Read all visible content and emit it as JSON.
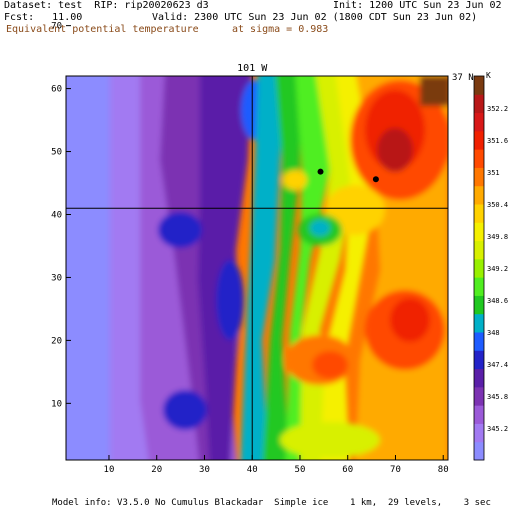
{
  "header": {
    "dataset_line": "Dataset: test  RIP: rip20020623 d3",
    "init_line": "Init: 1200 UTC Sun 23 Jun 02",
    "fcst_line": "Fcst:   11.00",
    "valid_line": "Valid: 2300 UTC Sun 23 Jun 02 (1800 CDT Sun 23 Jun 02)",
    "field_line": "Equivalent potential temperature",
    "level_line": "at sigma = 0.983"
  },
  "map": {
    "meridian_label": "101 W",
    "parallel_label": "37 N",
    "x_ticks": [
      "10",
      "20",
      "30",
      "40",
      "50",
      "60",
      "70",
      "80"
    ],
    "y_ticks": [
      "10",
      "20",
      "30",
      "40",
      "50",
      "60",
      "70"
    ],
    "x_range": [
      1,
      81
    ],
    "y_range": [
      1,
      62
    ],
    "meridian_x": 40,
    "parallel_y": 41,
    "markers": [
      {
        "x": 54.3,
        "y": 46.8
      },
      {
        "x": 65.9,
        "y": 45.6
      }
    ]
  },
  "colorbar": {
    "unit": "K",
    "labels": [
      "345.2",
      "345.8",
      "347.4",
      "348",
      "348.6",
      "349.2",
      "349.8",
      "350.4",
      "351",
      "351.6",
      "352.2"
    ],
    "colors": [
      "#8c8cff",
      "#a27af2",
      "#9b5ad8",
      "#7c33b2",
      "#5a1fa8",
      "#2323c8",
      "#1e5cff",
      "#00b0c8",
      "#20c820",
      "#50ee20",
      "#98f000",
      "#d8f000",
      "#f5f000",
      "#ffd200",
      "#ffaa00",
      "#ff7700",
      "#ff4a00",
      "#f02000",
      "#d81818",
      "#b81818",
      "#7a3a10"
    ]
  },
  "footer": "Model info: V3.5.0 No Cumulus Blackadar  Simple ice    1 km,  29 levels,    3 sec"
}
